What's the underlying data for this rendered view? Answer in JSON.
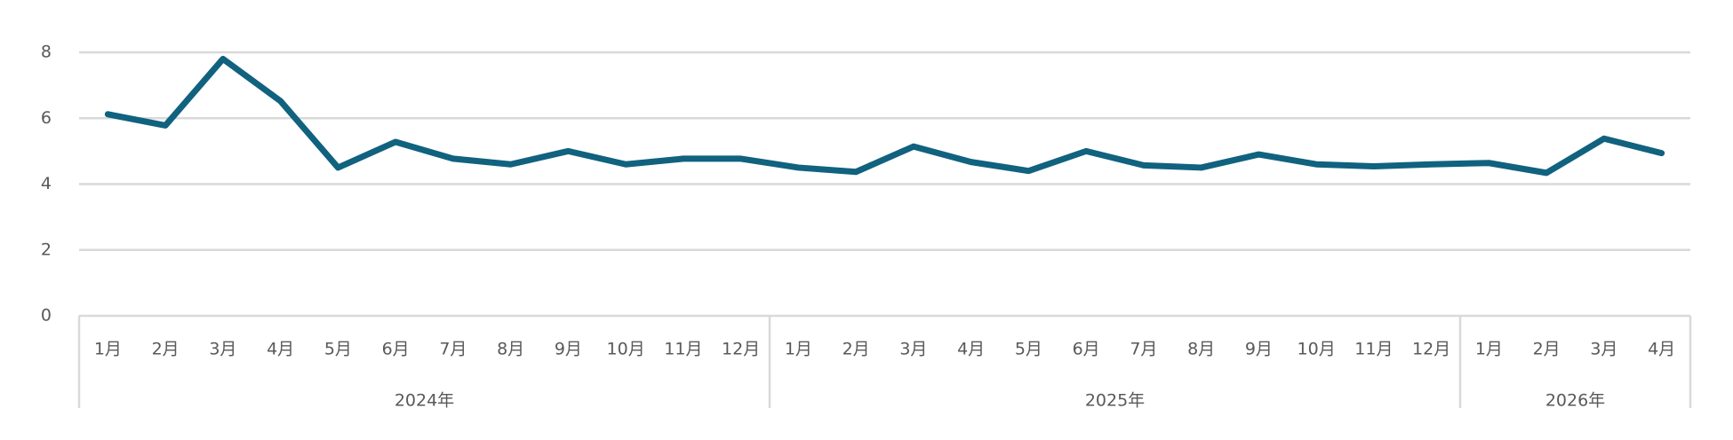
{
  "chart_data": {
    "type": "line",
    "groups": [
      {
        "label": "2024年",
        "categories": [
          "1月",
          "2月",
          "3月",
          "4月",
          "5月",
          "6月",
          "7月",
          "8月",
          "9月",
          "10月",
          "11月",
          "12月"
        ]
      },
      {
        "label": "2025年",
        "categories": [
          "1月",
          "2月",
          "3月",
          "4月",
          "5月",
          "6月",
          "7月",
          "8月",
          "9月",
          "10月",
          "11月",
          "12月"
        ]
      },
      {
        "label": "2026年",
        "categories": [
          "1月",
          "2月",
          "3月",
          "4月"
        ]
      }
    ],
    "series": [
      {
        "color": "#10627f",
        "values": [
          6.12,
          5.78,
          7.8,
          6.52,
          4.5,
          5.28,
          4.77,
          4.6,
          5.0,
          4.6,
          4.77,
          4.77,
          4.5,
          4.37,
          5.14,
          4.67,
          4.4,
          5.0,
          4.57,
          4.5,
          4.9,
          4.6,
          4.54,
          4.6,
          4.64,
          4.34,
          5.38,
          4.94
        ]
      }
    ],
    "ylim": [
      0,
      8
    ],
    "yticks": [
      0,
      2,
      4,
      6,
      8
    ],
    "grid": true
  }
}
